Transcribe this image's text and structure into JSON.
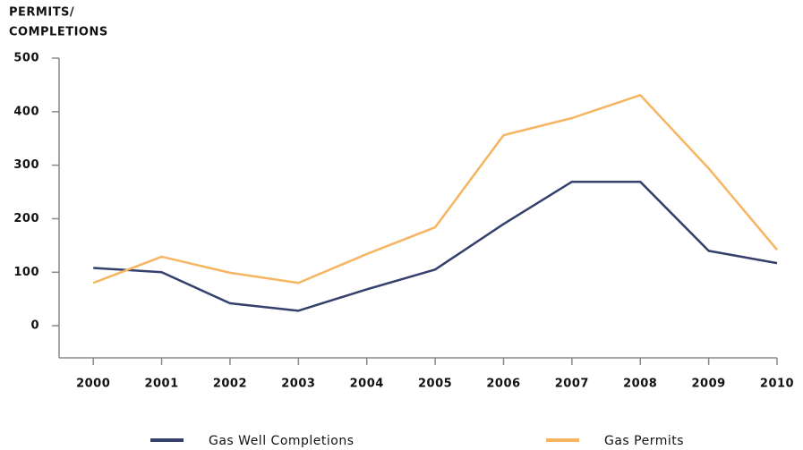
{
  "chart_data": {
    "type": "line",
    "ylabel": [
      "PERMITS/",
      "COMPLETIONS"
    ],
    "x": [
      2000,
      2001,
      2002,
      2003,
      2004,
      2005,
      2006,
      2007,
      2008,
      2009,
      2010
    ],
    "xlim": [
      1999.5,
      2010
    ],
    "xticks": [
      2000,
      2001,
      2002,
      2003,
      2004,
      2005,
      2006,
      2007,
      2008,
      2009,
      2010
    ],
    "ylim": [
      -60,
      500
    ],
    "yticks": [
      0,
      100,
      200,
      300,
      400,
      500
    ],
    "series": [
      {
        "name": "Gas Well Completions",
        "color": "#34406b",
        "values": [
          108,
          100,
          42,
          28,
          68,
          105,
          190,
          269,
          269,
          140,
          117
        ]
      },
      {
        "name": "Gas Permits",
        "color": "#f6b561",
        "values": [
          80,
          129,
          99,
          80,
          134,
          184,
          356,
          388,
          431,
          294,
          142
        ]
      }
    ]
  }
}
